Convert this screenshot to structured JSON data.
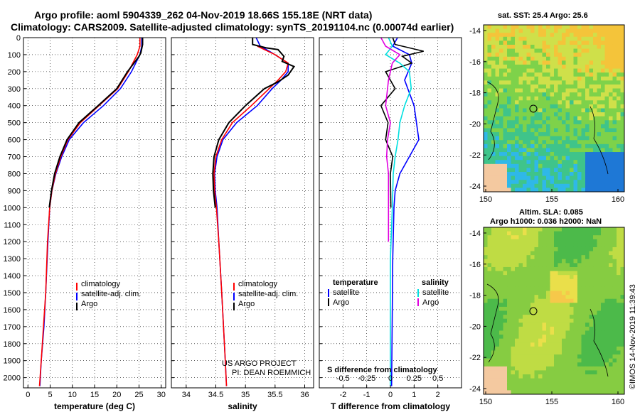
{
  "figure": {
    "title_line1": "Argo profile: aoml 5904339_262 04-Nov-2019 18.66S 155.18E (NRT data)",
    "title_line2": "Climatology: CARS2009. Satellite-adjusted climatology: synTS_20191104.nc (0.00074d earlier)",
    "footnote_project": "US ARGO PROJECT",
    "footnote_pi": "PI: DEAN ROEMMICH",
    "watermark": "©IMOS 14-Nov-2019 11:39:43"
  },
  "colors": {
    "climatology": "#ff0000",
    "satellite": "#0000ff",
    "argo": "#000000",
    "sal_satellite": "#00e0e0",
    "sal_argo": "#e000e0",
    "sal_climatology": "#000000"
  },
  "legends": {
    "temp": [
      "climatology",
      "satellite-adj. clim.",
      "Argo"
    ],
    "sal": [
      "climatology",
      "satellite-adj. clim.",
      "Argo"
    ],
    "diff_temperature_header": "temperature",
    "diff_salinity_header": "salinity",
    "diff_temp_items": [
      "satellite",
      "Argo"
    ],
    "diff_sal_items": [
      "satellite",
      "Argo"
    ],
    "diff_s_title": "S difference from climatology"
  },
  "maps": {
    "sst_title": "sat. SST: 25.4 Argo: 25.6",
    "sla_title_1": "Altim. SLA: 0.085",
    "sla_title_2": "Argo h1000: 0.036 h2000: NaN",
    "lat_ticks": [
      "-14",
      "-16",
      "-18",
      "-20",
      "-22",
      "-24"
    ],
    "lon_ticks": [
      "150",
      "155",
      "160"
    ]
  },
  "chart_data": [
    {
      "type": "line",
      "name": "temperature",
      "xlabel": "temperature (deg C)",
      "ylabel": "",
      "xlim": [
        -1,
        31
      ],
      "ylim": [
        2060,
        0
      ],
      "xticks": [
        "0",
        "5",
        "10",
        "15",
        "20",
        "25",
        "30"
      ],
      "xtick_values": [
        0,
        5,
        10,
        15,
        20,
        25,
        30
      ],
      "yticks": [
        "0",
        "100",
        "200",
        "300",
        "400",
        "500",
        "600",
        "700",
        "800",
        "900",
        "1000",
        "1100",
        "1200",
        "1300",
        "1400",
        "1500",
        "1600",
        "1700",
        "1800",
        "1900",
        "2000"
      ],
      "ytick_values": [
        0,
        100,
        200,
        300,
        400,
        500,
        600,
        700,
        800,
        900,
        1000,
        1100,
        1200,
        1300,
        1400,
        1500,
        1600,
        1700,
        1800,
        1900,
        2000
      ],
      "series": [
        {
          "name": "satellite-adj. clim.",
          "color": "#0000ff",
          "points": [
            [
              25.6,
              0
            ],
            [
              25.6,
              50
            ],
            [
              25.2,
              100
            ],
            [
              23.3,
              200
            ],
            [
              20.8,
              300
            ],
            [
              17,
              400
            ],
            [
              12.5,
              500
            ],
            [
              9.3,
              600
            ],
            [
              7.6,
              700
            ],
            [
              6.3,
              800
            ],
            [
              5.4,
              900
            ],
            [
              4.9,
              1000
            ],
            [
              4.5,
              1200
            ],
            [
              4,
              1500
            ],
            [
              3.6,
              1700
            ],
            [
              3,
              1900
            ],
            [
              2.7,
              2050
            ]
          ]
        },
        {
          "name": "climatology",
          "color": "#ff0000",
          "points": [
            [
              25.2,
              0
            ],
            [
              25.2,
              50
            ],
            [
              24.6,
              100
            ],
            [
              22.6,
              200
            ],
            [
              20.2,
              300
            ],
            [
              16,
              400
            ],
            [
              11.8,
              500
            ],
            [
              9,
              600
            ],
            [
              7.4,
              700
            ],
            [
              6.2,
              800
            ],
            [
              5.4,
              900
            ],
            [
              4.9,
              1000
            ],
            [
              4.4,
              1200
            ],
            [
              4,
              1500
            ],
            [
              3.5,
              1700
            ],
            [
              3,
              1900
            ],
            [
              2.6,
              2050
            ]
          ]
        },
        {
          "name": "Argo",
          "color": "#000000",
          "points": [
            [
              25.8,
              0
            ],
            [
              25.8,
              40
            ],
            [
              25.4,
              90
            ],
            [
              25,
              110
            ],
            [
              22.4,
              200
            ],
            [
              20,
              300
            ],
            [
              15.8,
              400
            ],
            [
              11.5,
              500
            ],
            [
              8.8,
              600
            ],
            [
              7.2,
              700
            ],
            [
              6,
              800
            ],
            [
              5.3,
              900
            ],
            [
              4.8,
              1000
            ]
          ]
        }
      ]
    },
    {
      "type": "line",
      "name": "salinity",
      "xlabel": "salinity",
      "ylabel": "",
      "xlim": [
        33.75,
        36.15
      ],
      "ylim": [
        2060,
        0
      ],
      "xticks": [
        "34",
        "34.5",
        "35",
        "35.5",
        "36"
      ],
      "xtick_values": [
        34,
        34.5,
        35,
        35.5,
        36
      ],
      "series": [
        {
          "name": "satellite-adj. clim.",
          "color": "#0000ff",
          "points": [
            [
              35.18,
              0
            ],
            [
              35.25,
              50
            ],
            [
              35.45,
              90
            ],
            [
              35.72,
              150
            ],
            [
              35.72,
              200
            ],
            [
              35.6,
              250
            ],
            [
              35.45,
              300
            ],
            [
              35.2,
              400
            ],
            [
              34.85,
              500
            ],
            [
              34.62,
              600
            ],
            [
              34.52,
              700
            ],
            [
              34.48,
              800
            ],
            [
              34.49,
              900
            ],
            [
              34.52,
              1000
            ],
            [
              34.55,
              1200
            ],
            [
              34.6,
              1500
            ],
            [
              34.63,
              1700
            ],
            [
              34.66,
              1900
            ],
            [
              34.68,
              2050
            ]
          ]
        },
        {
          "name": "climatology",
          "color": "#ff0000",
          "points": [
            [
              35.2,
              50
            ],
            [
              35.5,
              100
            ],
            [
              35.72,
              150
            ],
            [
              35.68,
              200
            ],
            [
              35.55,
              250
            ],
            [
              35.4,
              300
            ],
            [
              35.1,
              400
            ],
            [
              34.78,
              500
            ],
            [
              34.6,
              600
            ],
            [
              34.5,
              700
            ],
            [
              34.47,
              800
            ],
            [
              34.48,
              900
            ],
            [
              34.51,
              1000
            ],
            [
              34.55,
              1200
            ],
            [
              34.6,
              1500
            ],
            [
              34.63,
              1700
            ],
            [
              34.66,
              1900
            ],
            [
              34.68,
              2050
            ]
          ]
        },
        {
          "name": "Argo",
          "color": "#000000",
          "points": [
            [
              35.12,
              0
            ],
            [
              35.12,
              40
            ],
            [
              35.35,
              60
            ],
            [
              35.55,
              70
            ],
            [
              35.65,
              110
            ],
            [
              35.62,
              140
            ],
            [
              35.82,
              170
            ],
            [
              35.72,
              220
            ],
            [
              35.55,
              260
            ],
            [
              35.32,
              300
            ],
            [
              35,
              400
            ],
            [
              34.72,
              500
            ],
            [
              34.55,
              600
            ],
            [
              34.47,
              700
            ],
            [
              34.45,
              800
            ],
            [
              34.46,
              900
            ],
            [
              34.49,
              1000
            ]
          ]
        }
      ]
    },
    {
      "type": "line",
      "name": "differences",
      "xlabel": "T difference from climatology",
      "ylabel": "",
      "xlim": [
        -3,
        3
      ],
      "ylim": [
        2060,
        0
      ],
      "xticks": [
        "-2",
        "-1",
        "0",
        "1",
        "2"
      ],
      "xtick_values": [
        -2,
        -1,
        0,
        1,
        2
      ],
      "sticks": [
        "-0.5",
        "-0.25",
        "0",
        "0.25",
        "0.5"
      ],
      "stick_values": [
        -0.5,
        -0.25,
        0,
        0.25,
        0.5
      ],
      "slim": [
        -0.75,
        0.75
      ],
      "series": [
        {
          "name": "T satellite",
          "color": "#0000ff",
          "axis": "T",
          "points": [
            [
              0.3,
              0
            ],
            [
              0.1,
              50
            ],
            [
              0.8,
              100
            ],
            [
              0.9,
              150
            ],
            [
              0.6,
              250
            ],
            [
              1,
              400
            ],
            [
              1.2,
              600
            ],
            [
              0.8,
              700
            ],
            [
              0.4,
              800
            ],
            [
              0.2,
              900
            ],
            [
              0.15,
              1000
            ],
            [
              0.1,
              1300
            ],
            [
              0.05,
              2050
            ]
          ]
        },
        {
          "name": "T Argo",
          "color": "#000000",
          "axis": "T",
          "points": [
            [
              0.1,
              0
            ],
            [
              0.2,
              40
            ],
            [
              1.4,
              80
            ],
            [
              0.5,
              110
            ],
            [
              0.9,
              150
            ],
            [
              -0.2,
              200
            ],
            [
              0.2,
              300
            ],
            [
              -0.4,
              400
            ],
            [
              -0.1,
              500
            ],
            [
              -0.2,
              600
            ],
            [
              0.1,
              700
            ],
            [
              0,
              800
            ],
            [
              0.02,
              1000
            ]
          ]
        },
        {
          "name": "S satellite",
          "color": "#00e0e0",
          "axis": "S",
          "points": [
            [
              -0.02,
              0
            ],
            [
              0.02,
              50
            ],
            [
              -0.05,
              100
            ],
            [
              0.1,
              150
            ],
            [
              0.2,
              200
            ],
            [
              0.22,
              300
            ],
            [
              0.15,
              400
            ],
            [
              0.1,
              500
            ],
            [
              0.08,
              600
            ],
            [
              0.05,
              700
            ],
            [
              0.03,
              800
            ],
            [
              0.02,
              1000
            ],
            [
              0,
              1300
            ],
            [
              0,
              2050
            ]
          ]
        },
        {
          "name": "S Argo",
          "color": "#e000e0",
          "axis": "S",
          "points": [
            [
              -0.1,
              0
            ],
            [
              -0.05,
              50
            ],
            [
              0.1,
              100
            ],
            [
              0.02,
              150
            ],
            [
              -0.02,
              250
            ],
            [
              -0.05,
              400
            ],
            [
              0.0,
              500
            ],
            [
              -0.03,
              600
            ],
            [
              -0.04,
              700
            ],
            [
              -0.02,
              800
            ],
            [
              -0.02,
              1000
            ],
            [
              -0.02,
              1200
            ]
          ]
        }
      ]
    }
  ]
}
